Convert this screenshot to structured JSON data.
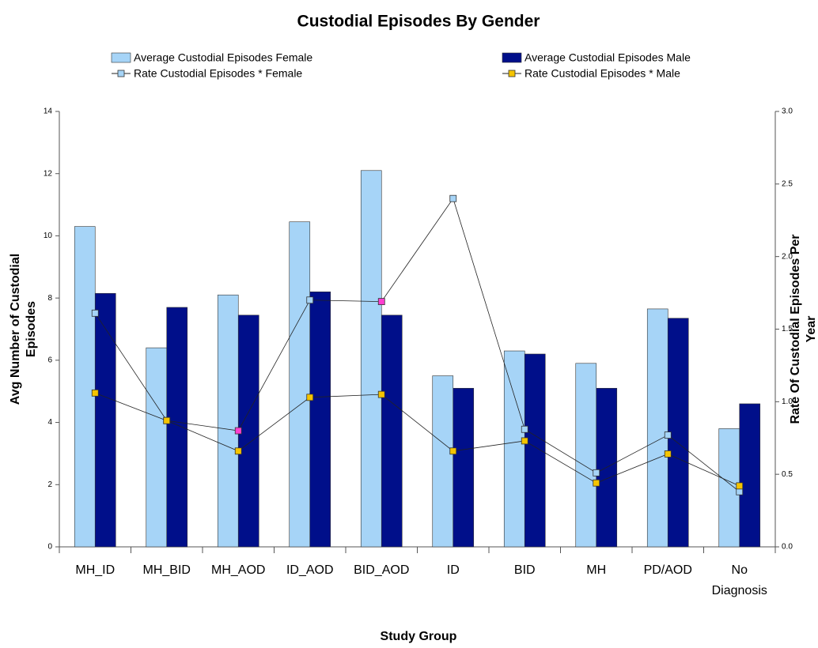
{
  "chart_data": {
    "type": "bar_line",
    "title": "Custodial Episodes By Gender",
    "x_label": "Study Group",
    "y_label": "Avg Number of Custodial Episodes",
    "y2_label": "Rate Of Custodial Episodes Per Year",
    "categories": [
      "MH_ID",
      "MH_BID",
      "MH_AOD",
      "ID_AOD",
      "BID_AOD",
      "ID",
      "BID",
      "MH",
      "PD/AOD",
      "No Diagnosis"
    ],
    "series": [
      {
        "name": "Average Custodial Episodes Female",
        "type": "bar",
        "color": "#a6d4f7",
        "values": [
          10.3,
          6.4,
          8.1,
          10.45,
          12.1,
          5.5,
          6.3,
          5.9,
          7.65,
          3.8
        ]
      },
      {
        "name": "Average Custodial Episodes Male",
        "type": "bar",
        "color": "#000f8a",
        "values": [
          8.15,
          7.7,
          7.45,
          8.2,
          7.45,
          5.1,
          6.2,
          5.1,
          7.35,
          4.6
        ]
      },
      {
        "name": "Rate Custodial Episodes * Female",
        "type": "line",
        "axis": "y2",
        "color": "#a6d4f7",
        "marker_colors": [
          "#a6d4f7",
          "#a6d4f7",
          "#ff3fd0",
          "#a6d4f7",
          "#ff3fd0",
          "#a6d4f7",
          "#a6d4f7",
          "#a6d4f7",
          "#a6d4f7",
          "#a6d4f7"
        ],
        "values": [
          1.61,
          0.87,
          0.8,
          1.7,
          1.69,
          2.4,
          0.81,
          0.51,
          0.77,
          0.38
        ]
      },
      {
        "name": "Rate Custodial Episodes * Male",
        "type": "line",
        "axis": "y2",
        "color": "#f5c400",
        "values": [
          1.06,
          0.87,
          0.66,
          1.03,
          1.05,
          0.66,
          0.73,
          0.44,
          0.64,
          0.42
        ]
      }
    ],
    "ylim": [
      0,
      14
    ],
    "yticks": [
      0,
      2,
      4,
      6,
      8,
      10,
      12,
      14
    ],
    "y2lim": [
      0,
      3
    ],
    "y2ticks": [
      {
        "value": 0,
        "label": "0.0"
      },
      {
        "value": 0.5,
        "label": "0.5"
      },
      {
        "value": 1,
        "label": "1.0"
      },
      {
        "value": 1.5,
        "label": "1.5"
      },
      {
        "value": 2,
        "label": "2.0"
      },
      {
        "value": 2.5,
        "label": "2.5"
      },
      {
        "value": 3,
        "label": "3.0"
      }
    ]
  }
}
